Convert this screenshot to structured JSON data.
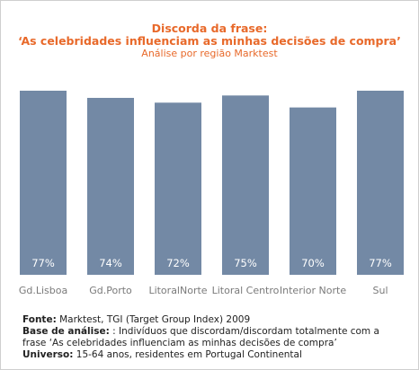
{
  "chart_data": {
    "type": "bar",
    "title": "Discorda da frase:",
    "title_line2": "‘As celebridades influenciam as minhas decisões de compra’",
    "subtitle": "Análise por região Marktest",
    "categories": [
      "Gd.Lisboa",
      "Gd.Porto",
      "LitoralNorte",
      "Litoral Centro",
      "Interior Norte",
      "Sul"
    ],
    "values": [
      77,
      74,
      72,
      75,
      70,
      77
    ],
    "value_labels": [
      "77%",
      "74%",
      "72%",
      "75%",
      "70%",
      "77%"
    ],
    "ylim": [
      0,
      77
    ],
    "bar_color": "#7389a5",
    "grid": false,
    "legend": "none"
  },
  "footnotes": {
    "source_label": "Fonte:",
    "source_text": " Marktest, TGI (Target Group Index) 2009",
    "base_label": "Base de análise:",
    "base_text": "  : Indivíduos que discordam/discordam totalmente com a",
    "base_text_line2": "frase ‘As celebridades influenciam as minhas decisões de compra’",
    "universe_label": "Universo:",
    "universe_text": " 15-64 anos, residentes em Portugal Continental"
  },
  "colors": {
    "title": "#e8692a",
    "label": "#7a7a7a"
  }
}
